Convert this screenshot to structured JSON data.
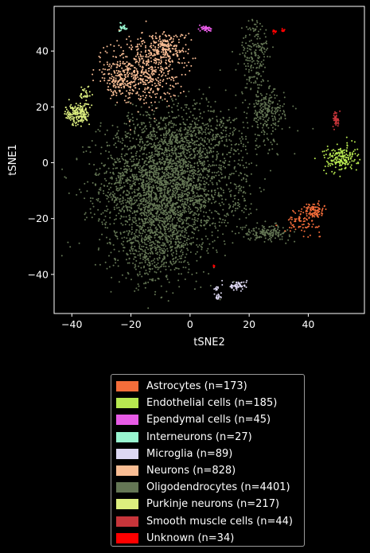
{
  "chart_data": {
    "type": "scatter",
    "title": "",
    "xlabel": "tSNE2",
    "ylabel": "tSNE1",
    "xlim": [
      -46,
      59
    ],
    "ylim": [
      -54,
      56
    ],
    "xticks": [
      -40,
      -20,
      0,
      20,
      40
    ],
    "yticks": [
      -40,
      -20,
      0,
      20,
      40
    ],
    "grid": false,
    "legend_position": "below plot",
    "series": [
      {
        "name": "Astrocytes (n=173)",
        "color": "#f46d3a",
        "clusters": [
          {
            "x": 38,
            "y": -21,
            "sx": 3,
            "sy": 2,
            "n": 90
          },
          {
            "x": 42,
            "y": -17,
            "sx": 1.6,
            "sy": 1.4,
            "n": 83
          }
        ]
      },
      {
        "name": "Endothelial cells (n=185)",
        "color": "#b7e850",
        "clusters": [
          {
            "x": 51,
            "y": 1.5,
            "sx": 2.8,
            "sy": 2.3,
            "n": 185
          }
        ]
      },
      {
        "name": "Ependymal cells (n=45)",
        "color": "#e75be6",
        "clusters": [
          {
            "x": 5.5,
            "y": 48,
            "sx": 0.9,
            "sy": 0.6,
            "n": 45
          }
        ]
      },
      {
        "name": "Interneurons (n=27)",
        "color": "#98f5d0",
        "clusters": [
          {
            "x": -22.5,
            "y": 48.5,
            "sx": 0.6,
            "sy": 0.7,
            "n": 27
          }
        ]
      },
      {
        "name": "Microglia (n=89)",
        "color": "#ddd8f2",
        "clusters": [
          {
            "x": 16,
            "y": -44,
            "sx": 1.6,
            "sy": 0.8,
            "n": 60
          },
          {
            "x": 9.5,
            "y": -48,
            "sx": 0.6,
            "sy": 0.8,
            "n": 20
          },
          {
            "x": 9,
            "y": -45,
            "sx": 0.3,
            "sy": 0.5,
            "n": 9
          }
        ]
      },
      {
        "name": "Neurons (n=828)",
        "color": "#f9bd94",
        "clusters": [
          {
            "x": -16,
            "y": 33,
            "sx": 6,
            "sy": 6,
            "n": 500
          },
          {
            "x": -8,
            "y": 41,
            "sx": 3.5,
            "sy": 3,
            "n": 200
          },
          {
            "x": -24,
            "y": 30,
            "sx": 3,
            "sy": 3,
            "n": 128
          }
        ]
      },
      {
        "name": "Oligodendrocytes (n=4401)",
        "color": "#647654",
        "clusters": [
          {
            "x": -8,
            "y": -8,
            "sx": 11,
            "sy": 12,
            "n": 2900
          },
          {
            "x": -12,
            "y": -30,
            "sx": 6,
            "sy": 7,
            "n": 500
          },
          {
            "x": 5,
            "y": 10,
            "sx": 12,
            "sy": 6,
            "n": 400
          },
          {
            "x": 26,
            "y": 18,
            "sx": 3,
            "sy": 4,
            "n": 200
          },
          {
            "x": 22,
            "y": 38,
            "sx": 2.5,
            "sy": 7,
            "n": 200
          },
          {
            "x": 26,
            "y": -25,
            "sx": 4,
            "sy": 1.3,
            "n": 150
          },
          {
            "x": 17,
            "y": -12,
            "sx": 3,
            "sy": 6,
            "n": 51
          }
        ]
      },
      {
        "name": "Purkinje neurons (n=217)",
        "color": "#dcee7e",
        "clusters": [
          {
            "x": -38,
            "y": 17.5,
            "sx": 2,
            "sy": 2,
            "n": 190
          },
          {
            "x": -35,
            "y": 25,
            "sx": 1.2,
            "sy": 1.5,
            "n": 27
          }
        ]
      },
      {
        "name": "Smooth muscle cells (n=44)",
        "color": "#c7353a",
        "clusters": [
          {
            "x": 49.5,
            "y": 15.5,
            "sx": 0.5,
            "sy": 1.4,
            "n": 44
          }
        ]
      },
      {
        "name": "Unknown (n=34)",
        "color": "#ff0000",
        "clusters": [
          {
            "x": 28.5,
            "y": 47,
            "sx": 0.3,
            "sy": 0.3,
            "n": 14
          },
          {
            "x": 31.5,
            "y": 47.5,
            "sx": 0.3,
            "sy": 0.3,
            "n": 14
          },
          {
            "x": 8,
            "y": -37,
            "sx": 0.3,
            "sy": 0.3,
            "n": 6
          }
        ]
      }
    ]
  }
}
